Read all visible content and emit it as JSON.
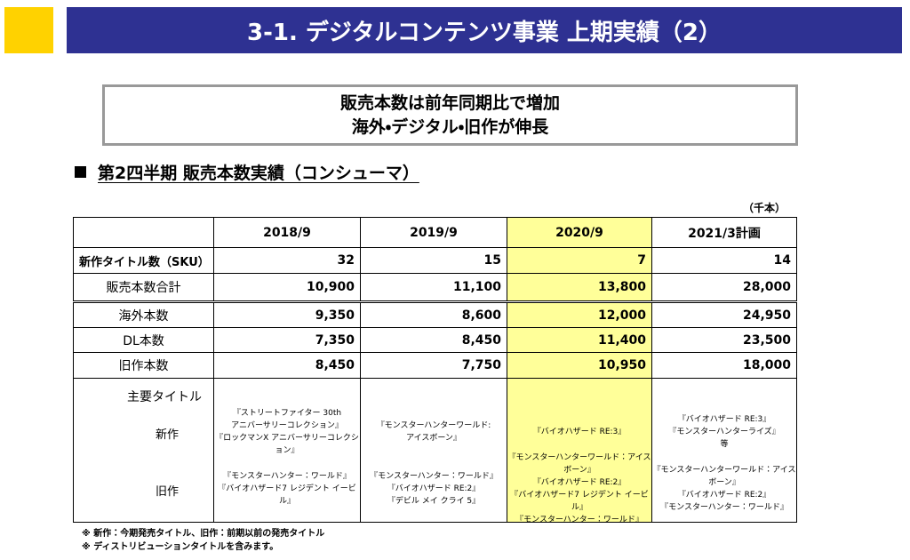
{
  "header": {
    "title": "3-1. デジタルコンテンツ事業 上期実績（2）"
  },
  "summary": {
    "lines": [
      "販売本数は前年同期比で増加",
      "海外・デジタル・旧作が伸長"
    ]
  },
  "section": {
    "heading": "第2四半期 販売本数実績（コンシューマ）",
    "unit": "（千本）"
  },
  "table": {
    "columns": [
      "2018/9",
      "2019/9",
      "2020/9",
      "2021/3計画"
    ],
    "highlight_column": 2,
    "rows": [
      {
        "label": "新作タイトル数（SKU）",
        "values": [
          "32",
          "15",
          "7",
          "14"
        ]
      },
      {
        "label": "販売本数合計",
        "values": [
          "10,900",
          "11,100",
          "13,800",
          "28,000"
        ]
      },
      {
        "label": "海外本数",
        "values": [
          "9,350",
          "8,600",
          "12,000",
          "24,950"
        ]
      },
      {
        "label": "DL本数",
        "values": [
          "7,350",
          "8,450",
          "11,400",
          "23,500"
        ]
      },
      {
        "label": "旧作本数",
        "values": [
          "8,450",
          "7,750",
          "10,950",
          "18,000"
        ]
      }
    ],
    "titles": {
      "label": "主要タイトル",
      "new_label": "新作",
      "old_label": "旧作",
      "new": [
        [
          "『ストリートファイター 30th",
          "アニバーサリーコレクション』",
          "『ロックマンX アニバーサリーコレクション』"
        ],
        [
          "『モンスターハンターワールド:",
          "アイスボーン』"
        ],
        [
          "『バイオハザード RE:3』"
        ],
        [
          "『バイオハザード RE:3』",
          "『モンスターハンターライズ』",
          "等"
        ]
      ],
      "old": [
        [
          "『モンスターハンター：ワールド』",
          "『バイオハザード7 レジデント イービル』"
        ],
        [
          "『モンスターハンター：ワールド』",
          "『バイオハザード RE:2』",
          "『デビル メイ クライ 5』"
        ],
        [
          "『モンスターハンターワールド：アイスボーン』",
          "『バイオハザード RE:2』",
          "『バイオハザード7 レジデント イービル』",
          "『モンスターハンター：ワールド』"
        ],
        [
          "『モンスターハンターワールド：アイスボーン』",
          "『バイオハザード RE:2』",
          "『モンスターハンター：ワールド』"
        ]
      ]
    }
  },
  "footnotes": [
    "※ 新作：今期発売タイトル、旧作：前期以前の発売タイトル",
    "※ ディストリビューションタイトルを含みます。"
  ]
}
